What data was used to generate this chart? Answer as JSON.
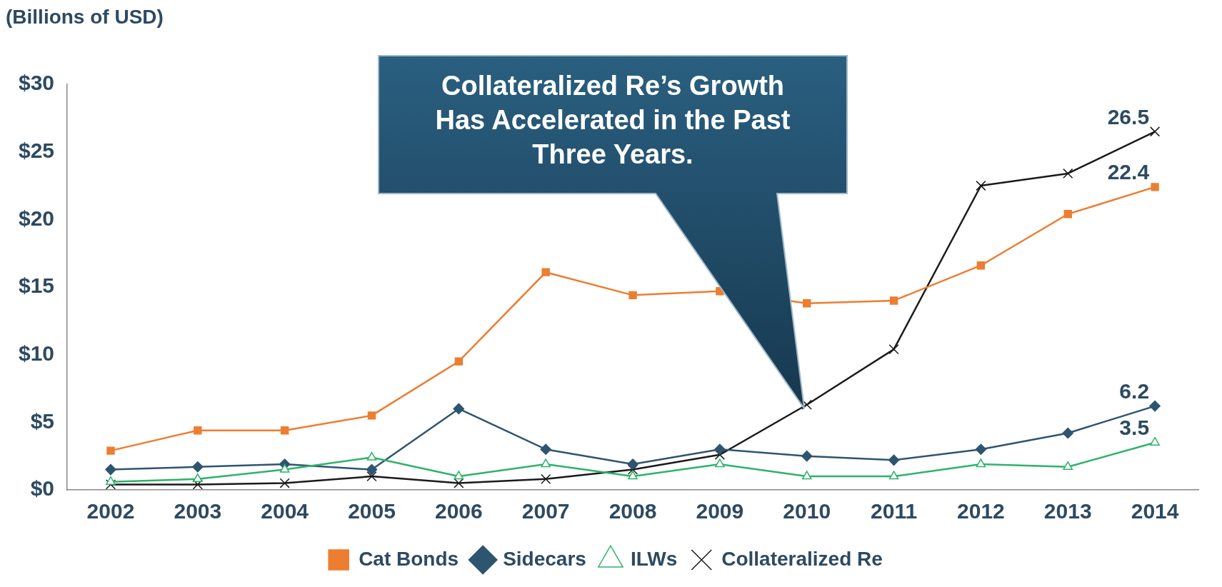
{
  "chart_data": {
    "type": "line",
    "ylabel": "(Billions of USD)",
    "categories": [
      "2002",
      "2003",
      "2004",
      "2005",
      "2006",
      "2007",
      "2008",
      "2009",
      "2010",
      "2011",
      "2012",
      "2013",
      "2014"
    ],
    "series": [
      {
        "name": "Cat Bonds",
        "color": "#ed7d31",
        "marker": "square",
        "values": [
          2.9,
          4.4,
          4.4,
          5.5,
          9.5,
          16.1,
          14.4,
          14.7,
          13.8,
          14.0,
          16.6,
          20.4,
          22.4
        ],
        "value_labels": [
          null,
          null,
          null,
          null,
          null,
          null,
          null,
          null,
          null,
          null,
          null,
          null,
          "22.4"
        ]
      },
      {
        "name": "Sidecars",
        "color": "#2e5570",
        "marker": "diamond",
        "values": [
          1.5,
          1.7,
          1.9,
          1.5,
          6.0,
          3.0,
          1.9,
          3.0,
          2.5,
          2.2,
          3.0,
          4.2,
          6.2
        ],
        "value_labels": [
          null,
          null,
          null,
          null,
          null,
          null,
          null,
          null,
          null,
          null,
          null,
          null,
          "6.2"
        ]
      },
      {
        "name": "ILWs",
        "color": "#2db36b",
        "marker": "triangle",
        "values": [
          0.6,
          0.8,
          1.5,
          2.4,
          1.0,
          1.9,
          1.0,
          1.9,
          1.0,
          1.0,
          1.9,
          1.7,
          3.5
        ],
        "value_labels": [
          null,
          null,
          null,
          null,
          null,
          null,
          null,
          null,
          null,
          null,
          null,
          null,
          "3.5"
        ]
      },
      {
        "name": "Collateralized Re",
        "color": "#1a1a1a",
        "marker": "cross",
        "values": [
          0.4,
          0.4,
          0.5,
          1.0,
          0.5,
          0.8,
          1.5,
          2.6,
          6.3,
          10.4,
          22.5,
          23.4,
          26.5
        ],
        "value_labels": [
          null,
          null,
          null,
          null,
          null,
          null,
          null,
          null,
          null,
          null,
          null,
          null,
          "26.5"
        ]
      }
    ],
    "ylim": [
      0,
      30
    ],
    "yticks": [
      {
        "value": 0,
        "label": "$0"
      },
      {
        "value": 5,
        "label": "$5"
      },
      {
        "value": 10,
        "label": "$10"
      },
      {
        "value": 15,
        "label": "$15"
      },
      {
        "value": 20,
        "label": "$20"
      },
      {
        "value": 25,
        "label": "$25"
      },
      {
        "value": 30,
        "label": "$30"
      }
    ],
    "grid": false,
    "legend": "bottom",
    "annotations": [
      "Collateralized Re’s Growth Has Accelerated in the Past Three Years."
    ]
  }
}
